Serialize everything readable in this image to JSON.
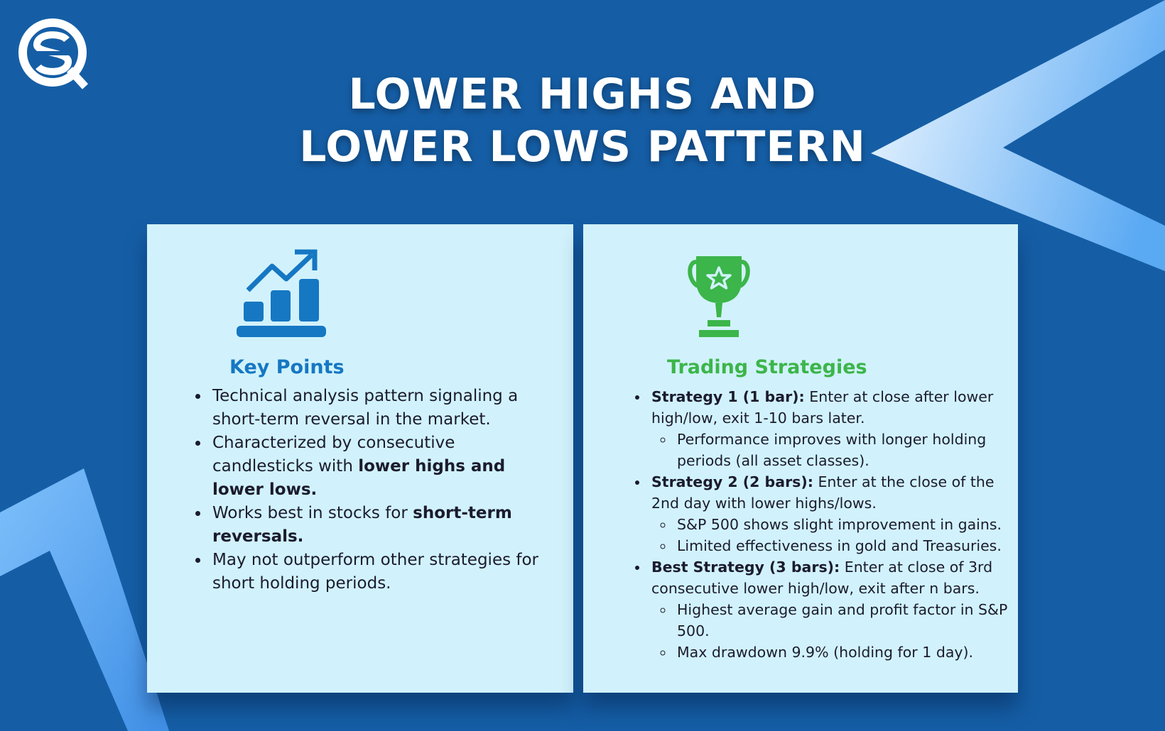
{
  "title": {
    "line1": "LOWER HIGHS AND",
    "line2": "LOWER LOWS PATTERN"
  },
  "colors": {
    "background": "#155ea6",
    "card": "#d1f2fc",
    "blue_accent": "#1677c3",
    "green_accent": "#3cb54a"
  },
  "logo": {
    "icon": "sq-logo-icon"
  },
  "key_points": {
    "icon": "growth-chart-icon",
    "heading": "Key Points",
    "items": [
      {
        "text": "Technical analysis pattern signaling a short-term reversal in the market."
      },
      {
        "text": "Characterized by consecutive candlesticks with ",
        "bold": "lower highs and lower lows."
      },
      {
        "text": "Works best in stocks for ",
        "bold": "short-term reversals."
      },
      {
        "text": "May not outperform other strategies for short holding periods."
      }
    ]
  },
  "trading_strategies": {
    "icon": "trophy-icon",
    "heading": "Trading Strategies",
    "items": [
      {
        "bold": "Strategy 1 (1 bar):",
        "text": " Enter at close after lower high/low, exit 1-10 bars later.",
        "sub": [
          "Performance improves with longer holding periods (all asset classes)."
        ]
      },
      {
        "bold": "Strategy 2 (2 bars):",
        "text": " Enter at the close of the 2nd day with lower highs/lows.",
        "sub": [
          "S&P 500 shows slight improvement in gains.",
          "Limited effectiveness in gold and Treasuries."
        ]
      },
      {
        "bold": "Best Strategy (3 bars):",
        "text": " Enter at close of 3rd consecutive lower high/low, exit after n bars.",
        "sub": [
          "Highest average gain and profit factor in S&P 500.",
          "Max drawdown 9.9% (holding for 1 day)."
        ]
      }
    ]
  }
}
